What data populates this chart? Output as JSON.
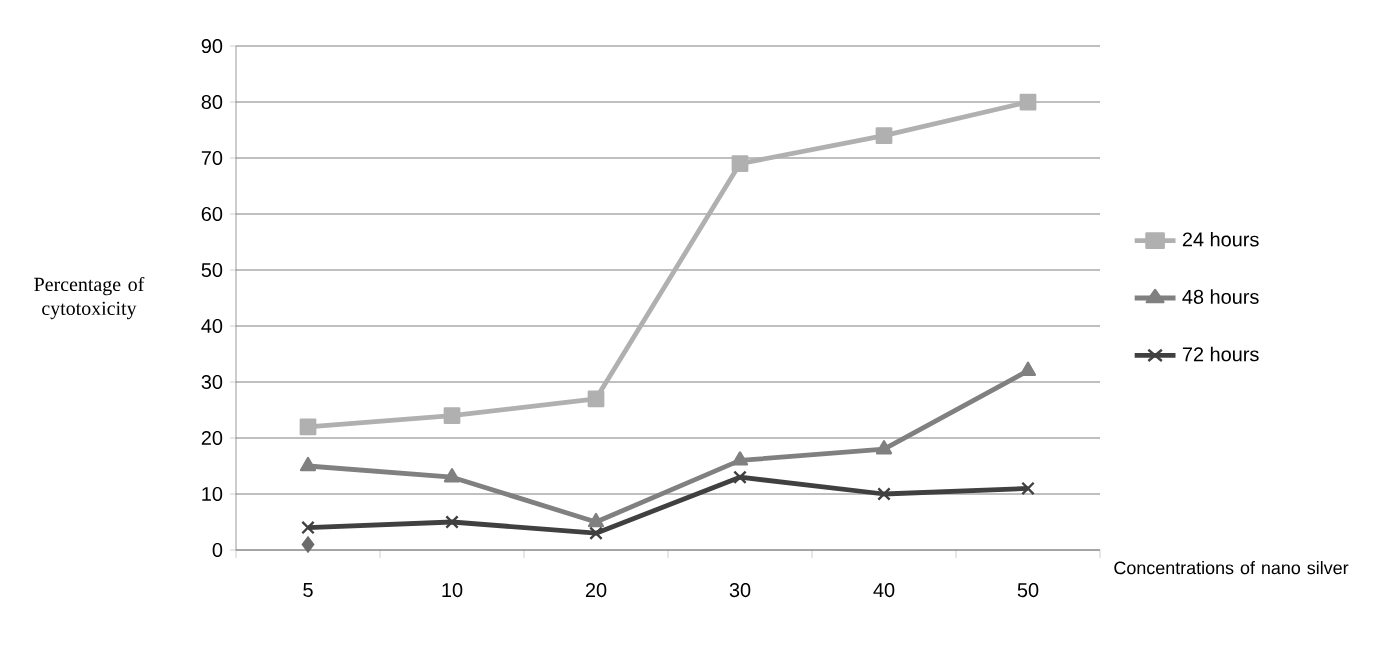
{
  "chart_data": {
    "type": "line",
    "xlabel": "Concentrations of nano silver",
    "ylabel": "Percentage of cytotoxicity",
    "categories": [
      "5",
      "10",
      "20",
      "30",
      "40",
      "50"
    ],
    "series": [
      {
        "name": "24 hours",
        "color": "#b0b0b0",
        "marker": "square",
        "values": [
          22,
          24,
          27,
          69,
          74,
          80
        ]
      },
      {
        "name": "48 hours",
        "color": "#808080",
        "marker": "triangle",
        "values": [
          15,
          13,
          5,
          16,
          18,
          32
        ]
      },
      {
        "name": "72 hours",
        "color": "#404040",
        "marker": "cross",
        "values": [
          4,
          5,
          3,
          13,
          10,
          11
        ]
      },
      {
        "type": "scatter",
        "color": "#6b6b6b",
        "marker": "diamond",
        "values": [
          1,
          null,
          null,
          null,
          null,
          null
        ]
      }
    ],
    "ylim": [
      0,
      90
    ],
    "yticks": [
      0,
      10,
      20,
      30,
      40,
      50,
      60,
      70,
      80,
      90
    ],
    "grid": "y",
    "legend": "right"
  }
}
